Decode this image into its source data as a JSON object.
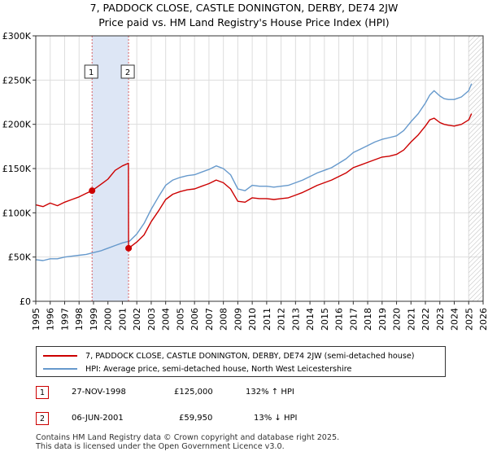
{
  "title_line1": "7, PADDOCK CLOSE, CASTLE DONINGTON, DERBY, DE74 2JW",
  "title_line2": "Price paid vs. HM Land Registry's House Price Index (HPI)",
  "legend": {
    "property_label": "7, PADDOCK CLOSE, CASTLE DONINGTON, DERBY, DE74 2JW (semi-detached house)",
    "hpi_label": "HPI: Average price, semi-detached house, North West Leicestershire"
  },
  "transactions": [
    {
      "num": "1",
      "date": "27-NOV-1998",
      "price": "£125,000",
      "hpi": "132% ↑ HPI"
    },
    {
      "num": "2",
      "date": "06-JUN-2001",
      "price": "£59,950",
      "hpi": "13% ↓ HPI"
    }
  ],
  "footer_line1": "Contains HM Land Registry data © Crown copyright and database right 2025.",
  "footer_line2": "This data is licensed under the Open Government Licence v3.0.",
  "colors": {
    "property": "#cc0000",
    "hpi": "#6699cc",
    "grid": "#dddddd",
    "shade": "#dde6f5",
    "hatch": "#bbbbbb"
  },
  "chart_data": {
    "type": "line",
    "xlim": [
      1995.0,
      2026.0
    ],
    "ylim": [
      0,
      300000
    ],
    "yticks": [
      0,
      50000,
      100000,
      150000,
      200000,
      250000,
      300000
    ],
    "ytick_labels": [
      "£0",
      "£50K",
      "£100K",
      "£150K",
      "£200K",
      "£250K",
      "£300K"
    ],
    "xticks": [
      1995,
      1996,
      1997,
      1998,
      1999,
      2000,
      2001,
      2002,
      2003,
      2004,
      2005,
      2006,
      2007,
      2008,
      2009,
      2010,
      2011,
      2012,
      2013,
      2014,
      2015,
      2016,
      2017,
      2018,
      2019,
      2020,
      2021,
      2022,
      2023,
      2024,
      2025,
      2026
    ],
    "shaded_region": [
      1998.9,
      2001.43
    ],
    "hatched_region": [
      2025.0,
      2026.0
    ],
    "markers": [
      {
        "label": "1",
        "x": 1998.9,
        "y": 125000
      },
      {
        "label": "2",
        "x": 2001.43,
        "y": 59950
      }
    ],
    "series": [
      {
        "name": "7, PADDOCK CLOSE, CASTLE DONINGTON, DERBY, DE74 2JW (semi-detached house)",
        "x": [
          1995.0,
          1995.5,
          1996.0,
          1996.5,
          1997.0,
          1997.5,
          1998.0,
          1998.5,
          1998.9,
          1999.5,
          2000.0,
          2000.5,
          2001.0,
          2001.42,
          2001.43,
          2002.0,
          2002.5,
          2003.0,
          2003.5,
          2004.0,
          2004.5,
          2005.0,
          2005.5,
          2006.0,
          2006.5,
          2007.0,
          2007.5,
          2008.0,
          2008.5,
          2009.0,
          2009.5,
          2010.0,
          2010.5,
          2011.0,
          2011.5,
          2012.0,
          2012.5,
          2013.0,
          2013.5,
          2014.0,
          2014.5,
          2015.0,
          2015.5,
          2016.0,
          2016.5,
          2017.0,
          2017.5,
          2018.0,
          2018.5,
          2019.0,
          2019.5,
          2020.0,
          2020.5,
          2021.0,
          2021.5,
          2022.0,
          2022.3,
          2022.6,
          2023.0,
          2023.3,
          2023.6,
          2024.0,
          2024.5,
          2025.0,
          2025.2
        ],
        "y": [
          109000,
          107000,
          111000,
          108000,
          112000,
          115000,
          118000,
          122000,
          125000,
          132000,
          138000,
          148000,
          153000,
          156000,
          59950,
          67000,
          75000,
          90000,
          102000,
          115000,
          121000,
          124000,
          126000,
          127000,
          130000,
          133000,
          137000,
          134000,
          127000,
          113000,
          112000,
          117000,
          116000,
          116000,
          115000,
          116000,
          117000,
          120000,
          123000,
          127000,
          131000,
          134000,
          137000,
          141000,
          145000,
          151000,
          154000,
          157000,
          160000,
          163000,
          164000,
          166000,
          171000,
          180000,
          188000,
          198000,
          205000,
          207000,
          202000,
          200000,
          199000,
          198000,
          200000,
          205000,
          212000
        ]
      },
      {
        "name": "HPI: Average price, semi-detached house, North West Leicestershire",
        "x": [
          1995.0,
          1995.5,
          1996.0,
          1996.5,
          1997.0,
          1997.5,
          1998.0,
          1998.5,
          1999.0,
          1999.5,
          2000.0,
          2000.5,
          2001.0,
          2001.5,
          2002.0,
          2002.5,
          2003.0,
          2003.5,
          2004.0,
          2004.5,
          2005.0,
          2005.5,
          2006.0,
          2006.5,
          2007.0,
          2007.5,
          2008.0,
          2008.5,
          2009.0,
          2009.5,
          2010.0,
          2010.5,
          2011.0,
          2011.5,
          2012.0,
          2012.5,
          2013.0,
          2013.5,
          2014.0,
          2014.5,
          2015.0,
          2015.5,
          2016.0,
          2016.5,
          2017.0,
          2017.5,
          2018.0,
          2018.5,
          2019.0,
          2019.5,
          2020.0,
          2020.5,
          2021.0,
          2021.5,
          2022.0,
          2022.3,
          2022.6,
          2023.0,
          2023.3,
          2023.6,
          2024.0,
          2024.5,
          2025.0,
          2025.2
        ],
        "y": [
          47000,
          46000,
          48000,
          48000,
          50000,
          51000,
          52000,
          53000,
          55000,
          57000,
          60000,
          63000,
          66000,
          68000,
          76000,
          88000,
          104000,
          118000,
          131000,
          137000,
          140000,
          142000,
          143000,
          146000,
          149000,
          153000,
          150000,
          143000,
          127000,
          125000,
          131000,
          130000,
          130000,
          129000,
          130000,
          131000,
          134000,
          137000,
          141000,
          145000,
          148000,
          151000,
          156000,
          161000,
          168000,
          172000,
          176000,
          180000,
          183000,
          185000,
          187000,
          193000,
          203000,
          212000,
          224000,
          233000,
          238000,
          232000,
          229000,
          228000,
          228000,
          231000,
          238000,
          246000
        ]
      }
    ]
  }
}
